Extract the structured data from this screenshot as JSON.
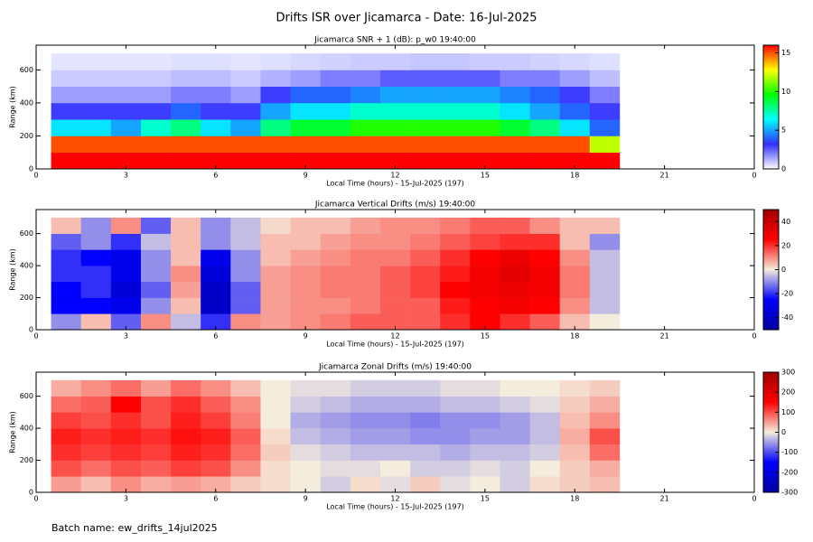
{
  "title": "Drifts ISR over Jicamarca - Date: 16-Jul-2025",
  "batch": "Batch name: ew_drifts_14jul2025",
  "chart_data": [
    {
      "type": "heatmap",
      "title": "Jicamarca SNR + 1 (dB): p_w0 19:40:00",
      "xlabel": "Local Time (hours) - 15-Jul-2025 (197)",
      "ylabel": "Range (km)",
      "xlim": [
        0,
        24
      ],
      "xticks": [
        0,
        3,
        6,
        9,
        12,
        15,
        18,
        21,
        {
          "value": 24,
          "label": "0"
        }
      ],
      "ylim": [
        0,
        750
      ],
      "yticks": [
        0,
        200,
        400,
        600
      ],
      "zlim": [
        0,
        16
      ],
      "zticks": [
        0,
        5,
        10,
        15
      ],
      "colormap": [
        "#ffffff",
        "#3030ff",
        "#00ffff",
        "#00ff00",
        "#ffff00",
        "#ff0000"
      ],
      "x_bins": [
        0.5,
        1.5,
        2.5,
        3.5,
        4.5,
        5.5,
        6.5,
        7.5,
        8.5,
        9.5,
        10.5,
        11.5,
        12.5,
        13.5,
        14.5,
        15.5,
        16.5,
        17.5,
        18.5,
        19.5
      ],
      "y_bins": [
        0,
        100,
        200,
        300,
        400,
        500,
        600,
        700
      ],
      "z": [
        [
          16,
          16,
          16,
          16,
          16,
          16,
          16,
          16,
          16,
          16,
          16,
          16,
          16,
          16,
          16,
          16,
          16,
          16,
          16
        ],
        [
          15,
          15,
          15,
          15,
          15,
          15,
          15,
          15,
          15,
          15,
          15,
          15,
          15,
          15,
          15,
          15,
          15,
          15,
          12
        ],
        [
          6,
          6,
          5,
          7,
          8,
          6,
          5,
          8,
          9,
          9,
          10,
          10,
          10,
          10,
          10,
          9,
          8,
          6,
          4
        ],
        [
          3,
          3,
          3,
          3,
          4,
          3,
          3,
          5,
          6,
          6,
          7,
          7,
          7,
          7,
          7,
          6,
          5,
          4,
          3
        ],
        [
          1.5,
          1.5,
          1.5,
          1.5,
          2,
          2,
          1.5,
          3,
          4,
          4,
          4.5,
          5,
          5,
          5,
          5,
          4.5,
          4,
          3,
          2
        ],
        [
          0.8,
          0.8,
          0.8,
          0.8,
          1,
          1,
          0.8,
          1.2,
          1.5,
          2,
          2,
          2.5,
          2.5,
          2.5,
          2.5,
          2,
          2,
          1.5,
          1
        ],
        [
          0.4,
          0.4,
          0.4,
          0.4,
          0.5,
          0.5,
          0.4,
          0.5,
          0.6,
          0.7,
          0.8,
          0.8,
          0.9,
          0.9,
          0.8,
          0.8,
          0.7,
          0.6,
          0.5
        ]
      ]
    },
    {
      "type": "heatmap",
      "title": "Jicamarca Vertical Drifts (m/s) 19:40:00",
      "xlabel": "Local Time (hours) - 15-Jul-2025 (197)",
      "ylabel": "Range (km)",
      "xlim": [
        0,
        24
      ],
      "xticks": [
        0,
        3,
        6,
        9,
        12,
        15,
        18,
        21,
        {
          "value": 24,
          "label": "0"
        }
      ],
      "ylim": [
        0,
        750
      ],
      "yticks": [
        0,
        200,
        400,
        600
      ],
      "zlim": [
        -50,
        50
      ],
      "zticks": [
        -40,
        -20,
        0,
        20,
        40
      ],
      "colormap": [
        "#0000a0",
        "#0000ff",
        "#f4ecdc",
        "#ff0000",
        "#a00000"
      ],
      "x_bins": [
        0.5,
        1.5,
        2.5,
        3.5,
        4.5,
        5.5,
        6.5,
        7.5,
        8.5,
        9.5,
        10.5,
        11.5,
        12.5,
        13.5,
        14.5,
        15.5,
        16.5,
        17.5,
        18.5,
        19.5
      ],
      "y_bins": [
        0,
        100,
        200,
        300,
        400,
        500,
        600,
        700
      ],
      "z": [
        [
          -10,
          5,
          -15,
          10,
          -5,
          -20,
          10,
          8,
          10,
          12,
          15,
          15,
          15,
          20,
          25,
          20,
          15,
          5,
          0
        ],
        [
          -25,
          -25,
          -30,
          -10,
          5,
          -40,
          -15,
          8,
          10,
          10,
          12,
          15,
          15,
          22,
          25,
          28,
          25,
          10,
          -5
        ],
        [
          -25,
          -20,
          -35,
          -15,
          8,
          -40,
          -15,
          8,
          10,
          12,
          12,
          15,
          18,
          25,
          28,
          30,
          28,
          12,
          -5
        ],
        [
          -20,
          -20,
          -30,
          -10,
          10,
          -35,
          -10,
          8,
          10,
          12,
          12,
          15,
          18,
          22,
          28,
          32,
          28,
          12,
          -5
        ],
        [
          -20,
          -25,
          -30,
          -10,
          5,
          -30,
          -10,
          5,
          8,
          10,
          12,
          12,
          15,
          20,
          25,
          30,
          25,
          10,
          -5
        ],
        [
          -15,
          -10,
          -20,
          -5,
          5,
          -10,
          -5,
          5,
          5,
          8,
          10,
          10,
          12,
          15,
          18,
          20,
          20,
          5,
          -10
        ],
        [
          5,
          -10,
          10,
          -15,
          5,
          -10,
          -5,
          2,
          5,
          5,
          8,
          10,
          10,
          12,
          15,
          15,
          10,
          5,
          5
        ]
      ]
    },
    {
      "type": "heatmap",
      "title": "Jicamarca Zonal Drifts (m/s) 19:40:00",
      "xlabel": "Local Time (hours) - 15-Jul-2025 (197)",
      "ylabel": "Range (km)",
      "xlim": [
        0,
        24
      ],
      "xticks": [
        0,
        3,
        6,
        9,
        12,
        15,
        18,
        21,
        {
          "value": 24,
          "label": "0"
        }
      ],
      "ylim": [
        0,
        750
      ],
      "yticks": [
        0,
        200,
        400,
        600
      ],
      "zlim": [
        -300,
        300
      ],
      "zticks": [
        -300,
        -200,
        -100,
        0,
        100,
        200,
        300
      ],
      "colormap": [
        "#0000a0",
        "#0000ff",
        "#f4ecdc",
        "#ff0000",
        "#a00000"
      ],
      "x_bins": [
        0.5,
        1.5,
        2.5,
        3.5,
        4.5,
        5.5,
        6.5,
        7.5,
        8.5,
        9.5,
        10.5,
        11.5,
        12.5,
        13.5,
        14.5,
        15.5,
        16.5,
        17.5,
        18.5,
        19.5
      ],
      "y_bins": [
        0,
        100,
        200,
        300,
        400,
        500,
        600,
        700
      ],
      "z": [
        [
          50,
          30,
          60,
          40,
          50,
          40,
          20,
          10,
          0,
          -20,
          10,
          -10,
          20,
          -10,
          0,
          -20,
          10,
          20,
          30
        ],
        [
          100,
          80,
          100,
          90,
          110,
          100,
          60,
          10,
          0,
          -10,
          -10,
          0,
          -20,
          -20,
          -10,
          -20,
          0,
          20,
          40
        ],
        [
          120,
          110,
          120,
          110,
          130,
          120,
          80,
          20,
          -10,
          -20,
          -30,
          -30,
          -30,
          -40,
          -30,
          -30,
          -20,
          30,
          80
        ],
        [
          130,
          120,
          130,
          120,
          140,
          130,
          90,
          10,
          -30,
          -40,
          -50,
          -50,
          -60,
          -60,
          -50,
          -50,
          -30,
          40,
          100
        ],
        [
          110,
          100,
          120,
          100,
          130,
          110,
          70,
          0,
          -40,
          -50,
          -60,
          -60,
          -70,
          -60,
          -60,
          -50,
          -30,
          30,
          60
        ],
        [
          80,
          90,
          150,
          100,
          120,
          90,
          60,
          0,
          -20,
          -30,
          -40,
          -40,
          -40,
          -30,
          -30,
          -20,
          -10,
          20,
          40
        ],
        [
          40,
          60,
          80,
          50,
          80,
          60,
          30,
          0,
          -10,
          -10,
          -20,
          -20,
          -20,
          -10,
          -10,
          0,
          0,
          10,
          20
        ]
      ]
    }
  ]
}
